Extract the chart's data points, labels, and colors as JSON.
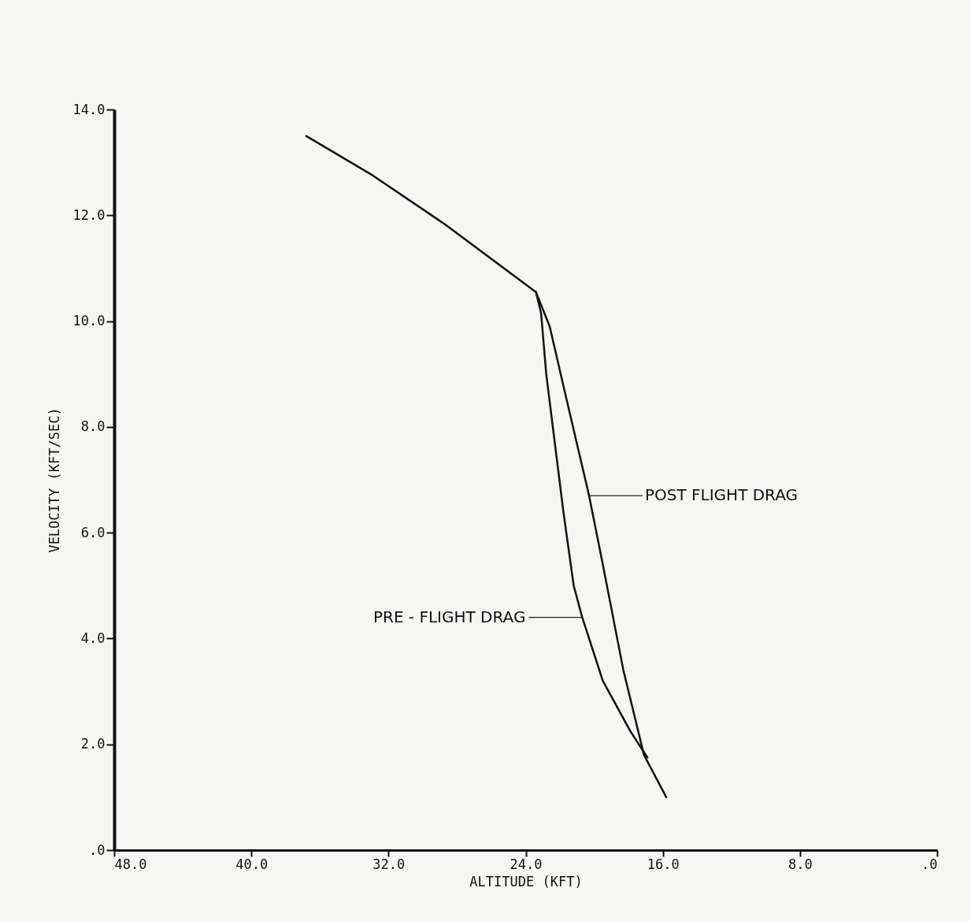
{
  "chart_data": {
    "type": "line",
    "xlabel": "ALTITUDE (KFT)",
    "ylabel": "VELOCITY (KFT/SEC)",
    "xlim": [
      48,
      0
    ],
    "ylim": [
      0,
      14
    ],
    "xticks": [
      {
        "value": 48,
        "label": "48.0"
      },
      {
        "value": 40,
        "label": "40.0"
      },
      {
        "value": 32,
        "label": "32.0"
      },
      {
        "value": 24,
        "label": "24.0"
      },
      {
        "value": 16,
        "label": "16.0"
      },
      {
        "value": 8,
        "label": "8.0"
      },
      {
        "value": 0,
        "label": ".0"
      }
    ],
    "yticks": [
      {
        "value": 0,
        "label": ".0"
      },
      {
        "value": 2,
        "label": "2.0"
      },
      {
        "value": 4,
        "label": "4.0"
      },
      {
        "value": 6,
        "label": "6.0"
      },
      {
        "value": 8,
        "label": "8.0"
      },
      {
        "value": 10,
        "label": "10.0"
      },
      {
        "value": 12,
        "label": "12.0"
      },
      {
        "value": 14,
        "label": "14.0"
      }
    ],
    "grid": false,
    "marker": "none",
    "line_style": "solid",
    "series": [
      {
        "color": "#111111",
        "x": [
          36.8,
          32.9,
          28.8,
          23.4,
          22.6,
          21.6,
          20.3,
          19.5,
          18.3,
          17.1,
          15.8
        ],
        "values": [
          13.5,
          12.75,
          11.85,
          10.55,
          9.9,
          8.5,
          6.7,
          5.4,
          3.4,
          1.8,
          1.0
        ]
      },
      {
        "color": "#111111",
        "x": [
          23.4,
          23.1,
          22.8,
          22.3,
          21.8,
          21.2,
          20.7,
          19.5,
          17.9,
          16.9
        ],
        "values": [
          10.55,
          10.15,
          9.0,
          7.7,
          6.4,
          5.0,
          4.4,
          3.2,
          2.25,
          1.75
        ]
      }
    ],
    "annotations": [
      {
        "text": "POST FLIGHT DRAG",
        "x": 20.3,
        "y": 6.7
      },
      {
        "text": "PRE - FLIGHT DRAG",
        "x": 20.7,
        "y": 4.4
      }
    ]
  }
}
